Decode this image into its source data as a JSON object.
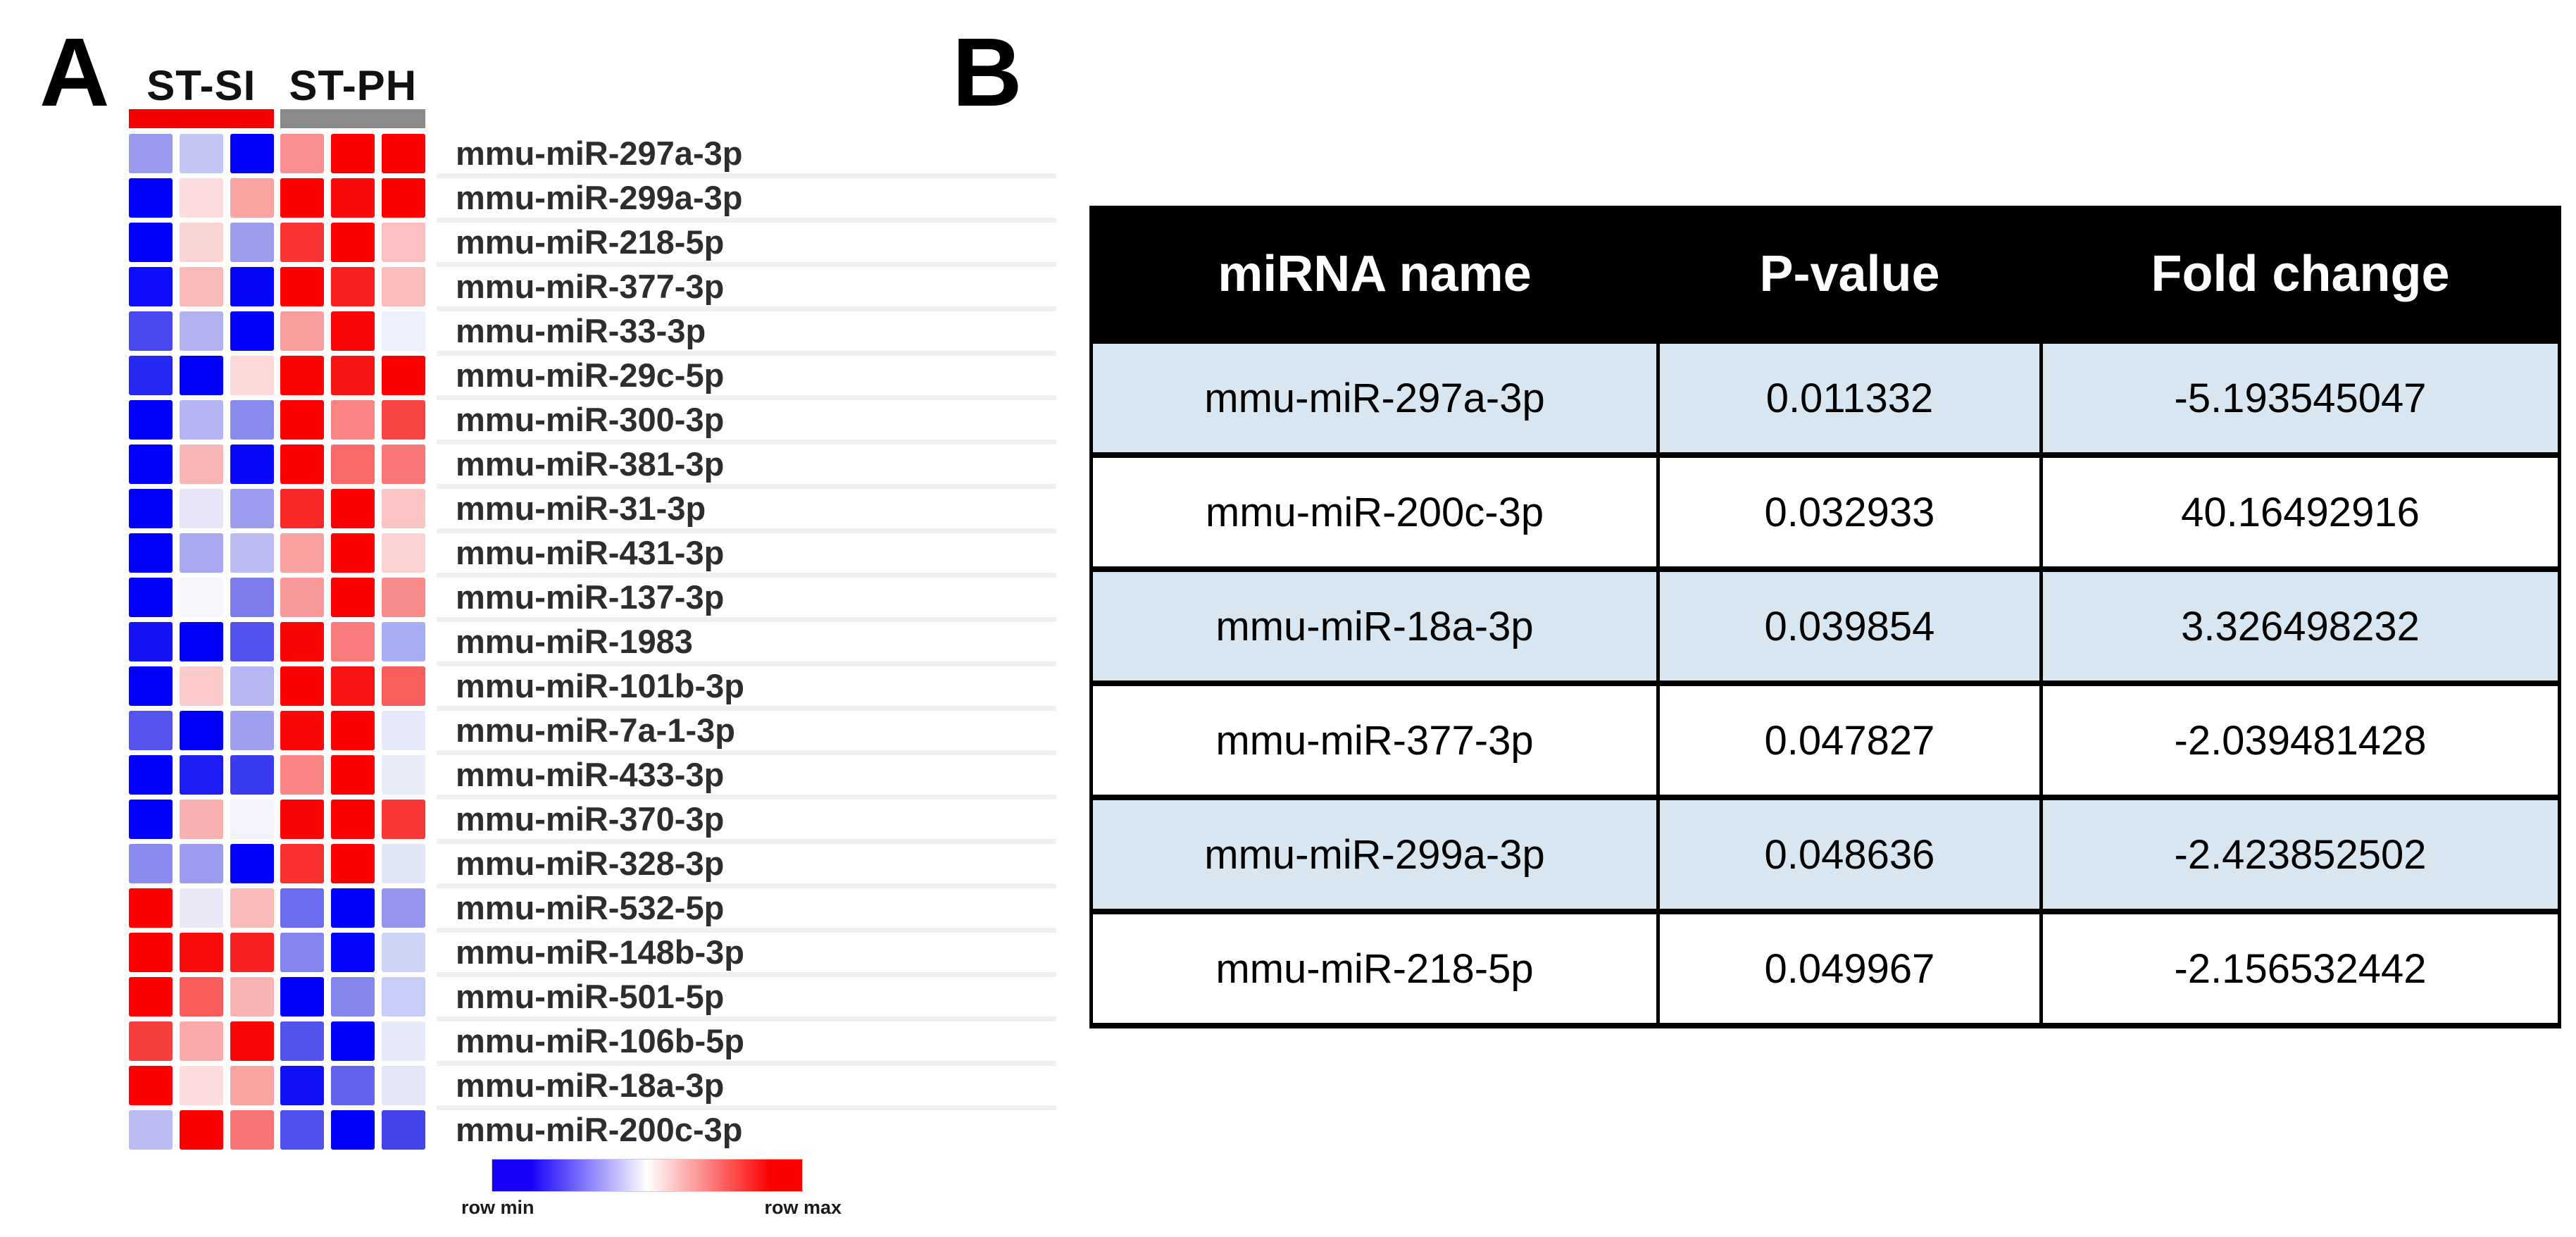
{
  "panel_a": {
    "label": "A"
  },
  "panel_b": {
    "label": "B"
  },
  "chart_data": [
    {
      "type": "heatmap",
      "title": "miRNA expression heatmap",
      "col_groups": [
        {
          "label": "ST-SI",
          "n_cols": 3,
          "bar_color": "#f40000"
        },
        {
          "label": "ST-PH",
          "n_cols": 3,
          "bar_color": "#8a8a8a"
        }
      ],
      "legend": {
        "min_label": "row min",
        "max_label": "row max",
        "min_color": "#1400f8",
        "mid_color": "#ffffff",
        "max_color": "#fa0000"
      },
      "rows": [
        {
          "name": "mmu-miR-297a-3p",
          "cell_colors": [
            "#9a9aee",
            "#c6c6f5",
            "#0000fa",
            "#f98f8f",
            "#fa0000",
            "#fa0000"
          ]
        },
        {
          "name": "mmu-miR-299a-3p",
          "cell_colors": [
            "#0000fa",
            "#fcdcdc",
            "#f9a3a3",
            "#fa0000",
            "#fa0a0a",
            "#fa0000"
          ]
        },
        {
          "name": "mmu-miR-218-5p",
          "cell_colors": [
            "#0000fa",
            "#fbd4d4",
            "#9d9def",
            "#f93535",
            "#fa0000",
            "#fbc0c0"
          ]
        },
        {
          "name": "mmu-miR-377-3p",
          "cell_colors": [
            "#0d0dfa",
            "#f9baba",
            "#0505fa",
            "#fa0000",
            "#f92020",
            "#fbbcbc"
          ]
        },
        {
          "name": "mmu-miR-33-3p",
          "cell_colors": [
            "#4848ef",
            "#b2b2f2",
            "#0000fa",
            "#f99e9e",
            "#fa0606",
            "#eef1fb"
          ]
        },
        {
          "name": "mmu-miR-29c-5p",
          "cell_colors": [
            "#2828f3",
            "#0000fa",
            "#fcd8d8",
            "#fa0404",
            "#f51515",
            "#fa0000"
          ]
        },
        {
          "name": "mmu-miR-300-3p",
          "cell_colors": [
            "#0000fa",
            "#b5b5f3",
            "#8a8aec",
            "#fa0000",
            "#f98585",
            "#f94444"
          ]
        },
        {
          "name": "mmu-miR-381-3p",
          "cell_colors": [
            "#0000fa",
            "#f9b6b6",
            "#0707fa",
            "#fa0000",
            "#f96a6a",
            "#f97777"
          ]
        },
        {
          "name": "mmu-miR-31-3p",
          "cell_colors": [
            "#0000fa",
            "#e6e6f8",
            "#9c9cf0",
            "#f92828",
            "#fa0000",
            "#fbc4c4"
          ]
        },
        {
          "name": "mmu-miR-431-3p",
          "cell_colors": [
            "#0000fa",
            "#a9a9f0",
            "#bbbbf3",
            "#f9a0a0",
            "#fa0000",
            "#fcd2d2"
          ]
        },
        {
          "name": "mmu-miR-137-3p",
          "cell_colors": [
            "#0000fa",
            "#f7f7fc",
            "#7c7cee",
            "#f99999",
            "#fa0000",
            "#f98a8a"
          ]
        },
        {
          "name": "mmu-miR-1983",
          "cell_colors": [
            "#1414f4",
            "#0000fa",
            "#5252ee",
            "#fa0505",
            "#f97d7d",
            "#a8aef2"
          ]
        },
        {
          "name": "mmu-miR-101b-3p",
          "cell_colors": [
            "#0000fa",
            "#fbcaca",
            "#b6b6f3",
            "#fa0000",
            "#f91212",
            "#f95e5e"
          ]
        },
        {
          "name": "mmu-miR-7a-1-3p",
          "cell_colors": [
            "#5555ee",
            "#0000fa",
            "#a0a0f0",
            "#fa0808",
            "#fa0000",
            "#e6e9f9"
          ]
        },
        {
          "name": "mmu-miR-433-3p",
          "cell_colors": [
            "#0000fa",
            "#1d1df3",
            "#3a3af0",
            "#f98585",
            "#fa0000",
            "#e9ecf9"
          ]
        },
        {
          "name": "mmu-miR-370-3p",
          "cell_colors": [
            "#0000fa",
            "#f9b0b0",
            "#f3f3fb",
            "#fa0505",
            "#fa0000",
            "#f93838"
          ]
        },
        {
          "name": "mmu-miR-328-3p",
          "cell_colors": [
            "#8b8bef",
            "#9c9cf0",
            "#0000fa",
            "#f93030",
            "#fa0000",
            "#e2e6f9"
          ]
        },
        {
          "name": "mmu-miR-532-5p",
          "cell_colors": [
            "#fa0000",
            "#e9e9f8",
            "#f9baba",
            "#6c6cee",
            "#0000fa",
            "#9595f0"
          ]
        },
        {
          "name": "mmu-miR-148b-3p",
          "cell_colors": [
            "#fa0000",
            "#fa0c0c",
            "#f92020",
            "#8484ef",
            "#0404fa",
            "#ccd3f7"
          ]
        },
        {
          "name": "mmu-miR-501-5p",
          "cell_colors": [
            "#fa0000",
            "#f95c5c",
            "#f9b4b4",
            "#0000fa",
            "#8686ef",
            "#c6cdf6"
          ]
        },
        {
          "name": "mmu-miR-106b-5p",
          "cell_colors": [
            "#f93e3e",
            "#f9a9a9",
            "#fa0707",
            "#5353ee",
            "#0000fa",
            "#e6eaf9"
          ]
        },
        {
          "name": "mmu-miR-18a-3p",
          "cell_colors": [
            "#fa0000",
            "#fcdddd",
            "#f9a3a3",
            "#1111f6",
            "#6363ee",
            "#e3e7f9"
          ]
        },
        {
          "name": "mmu-miR-200c-3p",
          "cell_colors": [
            "#bbbbf3",
            "#fa0000",
            "#f97575",
            "#5050ed",
            "#0000fa",
            "#4343ea"
          ]
        }
      ]
    },
    {
      "type": "table",
      "headers": [
        "miRNA name",
        "P-value",
        "Fold change"
      ],
      "header_bg": "#000000",
      "header_text_color": "#ffffff",
      "alt_row_bg": "#d8e6f2",
      "row_bg": "#ffffff",
      "rows": [
        {
          "mirna": "mmu-miR-297a-3p",
          "p_value": "0.011332",
          "fold_change": "-5.193545047"
        },
        {
          "mirna": "mmu-miR-200c-3p",
          "p_value": "0.032933",
          "fold_change": "40.16492916"
        },
        {
          "mirna": "mmu-miR-18a-3p",
          "p_value": "0.039854",
          "fold_change": "3.326498232"
        },
        {
          "mirna": "mmu-miR-377-3p",
          "p_value": "0.047827",
          "fold_change": "-2.039481428"
        },
        {
          "mirna": "mmu-miR-299a-3p",
          "p_value": "0.048636",
          "fold_change": "-2.423852502"
        },
        {
          "mirna": "mmu-miR-218-5p",
          "p_value": "0.049967",
          "fold_change": "-2.156532442"
        }
      ]
    }
  ]
}
